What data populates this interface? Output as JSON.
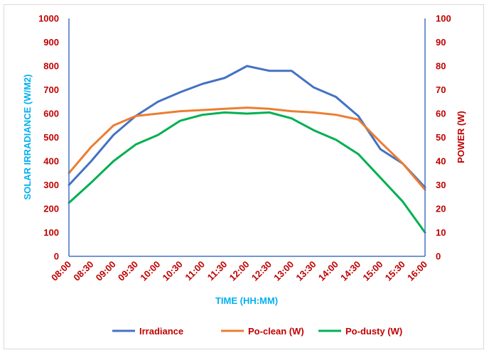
{
  "chart_data": {
    "type": "line",
    "categories": [
      "08:00",
      "08:30",
      "09:00",
      "09:30",
      "10:00",
      "10:30",
      "11:00",
      "11:30",
      "12:00",
      "12:30",
      "13:00",
      "13:30",
      "14:00",
      "14:30",
      "15:00",
      "15:30",
      "16:00"
    ],
    "xlabel": "TIME (HH:MM)",
    "ylabel": "SOLAR IRRADIANCE (W/M2)",
    "y2label": "POWER (W)",
    "ylim": [
      0,
      1000
    ],
    "y2lim": [
      0,
      100
    ],
    "yticks": [
      "0",
      "100",
      "200",
      "300",
      "400",
      "500",
      "600",
      "700",
      "800",
      "900",
      "1000"
    ],
    "y2ticks": [
      "0",
      "10",
      "20",
      "30",
      "40",
      "50",
      "60",
      "70",
      "80",
      "90",
      "100"
    ],
    "grid": false,
    "legend_position": "bottom",
    "series": [
      {
        "name": "Irradiance",
        "axis": "left",
        "color": "#4472c4",
        "values": [
          300,
          400,
          510,
          590,
          650,
          690,
          725,
          750,
          800,
          780,
          780,
          710,
          670,
          590,
          450,
          390,
          290
        ]
      },
      {
        "name": "Po-clean (W)",
        "axis": "right",
        "color": "#ed7d31",
        "values": [
          35,
          46,
          55,
          59,
          60,
          61,
          61.5,
          62,
          62.5,
          62,
          61,
          60.5,
          59.5,
          57.5,
          48,
          39,
          28
        ]
      },
      {
        "name": "Po-dusty (W)",
        "axis": "right",
        "color": "#00b050",
        "values": [
          22.5,
          31,
          40,
          47,
          51,
          57,
          59.5,
          60.5,
          60,
          60.5,
          58,
          53,
          49,
          43,
          33,
          23,
          10
        ]
      }
    ],
    "axis_color": "#4472c4"
  }
}
